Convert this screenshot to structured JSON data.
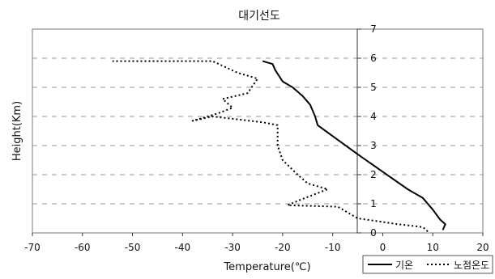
{
  "chart_data": {
    "type": "line",
    "title": "대기선도",
    "xlabel": "Temperature(℃)",
    "ylabel": "Height(Km)",
    "xlim": [
      -70,
      20
    ],
    "ylim": [
      0,
      7
    ],
    "x_ticks": [
      -70,
      -60,
      -50,
      -40,
      -30,
      -20,
      -10,
      0,
      10,
      20
    ],
    "y_ticks": [
      0,
      1,
      2,
      3,
      4,
      5,
      6,
      7
    ],
    "grid": "horizontal-dashed",
    "legend_position": "bottom-right",
    "series": [
      {
        "name": "기온",
        "style": "solid",
        "color": "#000000",
        "points": [
          [
            12,
            0.1
          ],
          [
            12.5,
            0.3
          ],
          [
            11.5,
            0.45
          ],
          [
            10,
            0.8
          ],
          [
            8,
            1.2
          ],
          [
            5,
            1.5
          ],
          [
            0,
            2.1
          ],
          [
            -5,
            2.7
          ],
          [
            -9,
            3.2
          ],
          [
            -13,
            3.7
          ],
          [
            -13.5,
            4.0
          ],
          [
            -14.5,
            4.4
          ],
          [
            -16,
            4.7
          ],
          [
            -18,
            5.0
          ],
          [
            -20,
            5.2
          ],
          [
            -21.5,
            5.6
          ],
          [
            -22,
            5.8
          ],
          [
            -24,
            5.9
          ]
        ]
      },
      {
        "name": "노점온도",
        "style": "dotted",
        "color": "#000000",
        "points": [
          [
            9,
            0.05
          ],
          [
            8,
            0.2
          ],
          [
            3,
            0.3
          ],
          [
            -5,
            0.5
          ],
          [
            -9,
            0.9
          ],
          [
            -19,
            0.95
          ],
          [
            -17,
            1.1
          ],
          [
            -11,
            1.5
          ],
          [
            -15,
            1.7
          ],
          [
            -17,
            2.0
          ],
          [
            -20,
            2.5
          ],
          [
            -21,
            3.0
          ],
          [
            -21,
            3.7
          ],
          [
            -24,
            3.8
          ],
          [
            -34,
            4.0
          ],
          [
            -38,
            3.85
          ],
          [
            -33,
            4.1
          ],
          [
            -30,
            4.3
          ],
          [
            -32,
            4.6
          ],
          [
            -27,
            4.8
          ],
          [
            -25,
            5.3
          ],
          [
            -29,
            5.5
          ],
          [
            -34,
            5.9
          ],
          [
            -54,
            5.9
          ]
        ]
      }
    ]
  }
}
